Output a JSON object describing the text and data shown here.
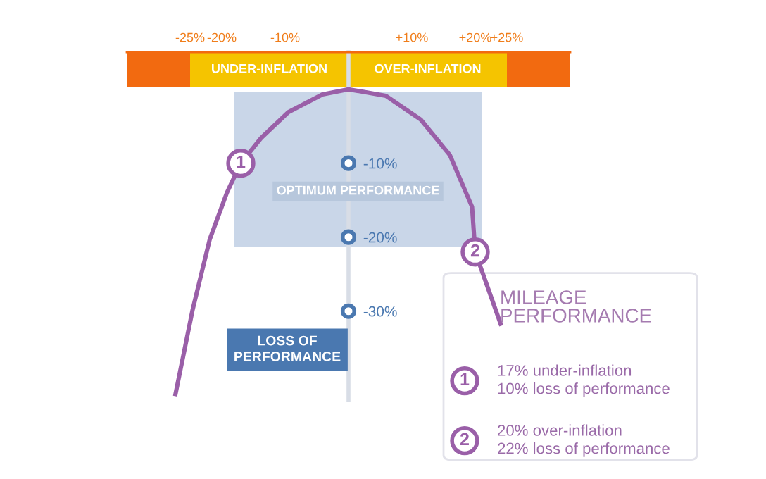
{
  "chart_data": {
    "type": "line",
    "x": [
      -27.3,
      -24.6,
      -21.9,
      -19.2,
      -17,
      -13.8,
      -9.5,
      -4.1,
      0,
      5.9,
      11.4,
      16,
      19.5,
      20,
      24
    ],
    "series": [
      {
        "color": "#9a5fa8",
        "values": [
          -41.2,
          -29.8,
          -20.3,
          -14,
          -10,
          -6.6,
          -3.1,
          -0.7,
          0,
          -0.9,
          -4.1,
          -8.9,
          -15.9,
          -22,
          -31.7
        ]
      }
    ],
    "xlim": [
      -35,
      35
    ],
    "ylim": [
      -42,
      5
    ],
    "xticks": [
      {
        "value": -25,
        "label": "-25%"
      },
      {
        "value": -20,
        "label": "-20%"
      },
      {
        "value": -10,
        "label": "-10%"
      },
      {
        "value": 10,
        "label": "+10%"
      },
      {
        "value": 20,
        "label": "+20%"
      },
      {
        "value": 25,
        "label": "+25%"
      }
    ],
    "yticks": [
      {
        "value": -10,
        "label": "-10%"
      },
      {
        "value": -20,
        "label": "-20%"
      },
      {
        "value": -30,
        "label": "-30%"
      }
    ],
    "bands": [
      {
        "axis": "x",
        "from": -35,
        "to": -25,
        "color": "#f26a10"
      },
      {
        "axis": "x",
        "from": -25,
        "to": 0,
        "label": "UNDER-INFLATION",
        "color": "#f5c400"
      },
      {
        "axis": "x",
        "from": 0,
        "to": 25,
        "label": "OVER-INFLATION",
        "color": "#f5c400"
      },
      {
        "axis": "x",
        "from": 25,
        "to": 35,
        "color": "#f26a10"
      },
      {
        "axis": "x",
        "from": -18,
        "to": 21,
        "label": "OPTIMUM PERFORMANCE",
        "color": "#c9d6e8"
      }
    ],
    "annotations": [
      {
        "text": "1",
        "x": -17,
        "y": -10
      },
      {
        "text": "2",
        "x": 20,
        "y": -22
      },
      "LOSS OF PERFORMANCE",
      "MILEAGE PERFORMANCE",
      "17% under-inflation\n10% loss of performance",
      "20% over-inflation\n22% loss of performance"
    ],
    "grid": false,
    "legend": false,
    "marker": "none",
    "line_style": "solid"
  }
}
